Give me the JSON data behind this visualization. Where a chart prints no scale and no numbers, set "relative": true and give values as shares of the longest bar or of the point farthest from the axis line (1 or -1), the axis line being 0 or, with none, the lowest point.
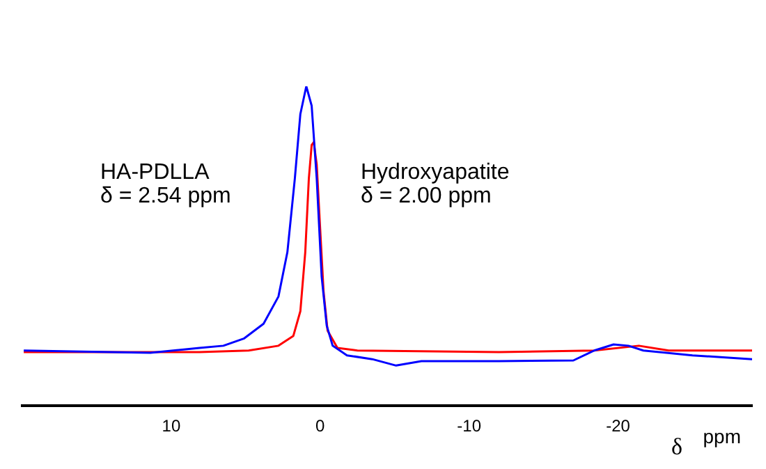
{
  "chart_data": {
    "type": "line",
    "relative": true,
    "xlabel": "δ ppm",
    "xlim": [
      20,
      -29
    ],
    "xticks": [
      10,
      0,
      -10,
      -20
    ],
    "grid": false,
    "legend": false,
    "marker": "none",
    "annotations": [
      "HA-PDLLA\nδ = 2.54 ppm",
      "Hydroxyapatite\nδ = 2.00 ppm"
    ],
    "series": [
      {
        "color": "#0000ff",
        "x": [
          19.9,
          11.4,
          8.1,
          6.5,
          5.1,
          3.8,
          2.8,
          2.2,
          1.7,
          1.33,
          0.93,
          0.57,
          0.23,
          -0.1,
          -0.44,
          -0.84,
          -1.8,
          -3.5,
          -5.1,
          -6.8,
          -12,
          -17,
          -18.4,
          -19.7,
          -20.7,
          -21.7,
          -25,
          -29
        ],
        "values": [
          0.173,
          0.166,
          0.181,
          0.188,
          0.211,
          0.257,
          0.342,
          0.481,
          0.711,
          0.913,
          1,
          0.939,
          0.711,
          0.405,
          0.251,
          0.188,
          0.158,
          0.146,
          0.126,
          0.14,
          0.14,
          0.142,
          0.173,
          0.192,
          0.188,
          0.173,
          0.158,
          0.146
        ]
      },
      {
        "color": "#ff0000",
        "x": [
          19.9,
          8.1,
          4.8,
          2.8,
          1.8,
          1.33,
          1,
          0.76,
          0.57,
          0.43,
          0.23,
          0,
          -0.23,
          -0.5,
          -1.16,
          -2.5,
          -12,
          -18.4,
          -21.4,
          -23.4,
          -29
        ],
        "values": [
          0.168,
          0.168,
          0.173,
          0.188,
          0.219,
          0.296,
          0.481,
          0.711,
          0.816,
          0.825,
          0.755,
          0.554,
          0.357,
          0.235,
          0.181,
          0.173,
          0.168,
          0.173,
          0.188,
          0.173,
          0.173
        ]
      }
    ]
  }
}
